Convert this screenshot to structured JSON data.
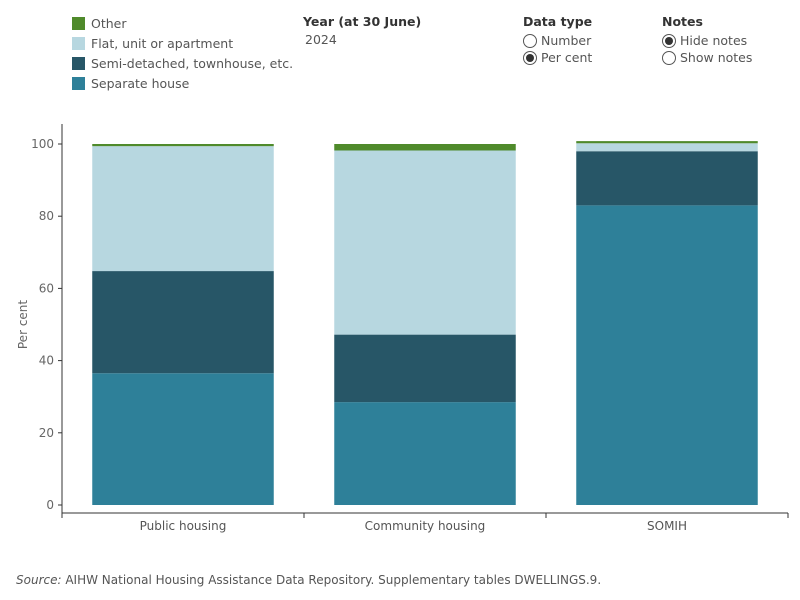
{
  "legend": [
    {
      "label": "Other",
      "color": "#4f8a2b"
    },
    {
      "label": "Flat, unit or apartment",
      "color": "#b7d7e0"
    },
    {
      "label": "Semi-detached, townhouse, etc.",
      "color": "#275667"
    },
    {
      "label": "Separate house",
      "color": "#2e8099"
    }
  ],
  "filters": {
    "year": {
      "title": "Year (at 30 June)",
      "value": "2024"
    },
    "data_type": {
      "title": "Data type",
      "options": [
        {
          "label": "Number",
          "checked": false
        },
        {
          "label": "Per cent",
          "checked": true
        }
      ]
    },
    "notes": {
      "title": "Notes",
      "options": [
        {
          "label": "Hide notes",
          "checked": true
        },
        {
          "label": "Show notes",
          "checked": false
        }
      ]
    }
  },
  "chart_data": {
    "type": "bar",
    "stacked": true,
    "categories": [
      "Public housing",
      "Community housing",
      "SOMIH"
    ],
    "series": [
      {
        "name": "Separate house",
        "color": "#2e8099",
        "values": [
          36.5,
          28.5,
          83
        ]
      },
      {
        "name": "Semi-detached, townhouse, etc.",
        "color": "#275667",
        "values": [
          28.3,
          18.7,
          15
        ]
      },
      {
        "name": "Flat, unit or apartment",
        "color": "#b7d7e0",
        "values": [
          34.6,
          51,
          2.2
        ]
      },
      {
        "name": "Other",
        "color": "#4f8a2b",
        "values": [
          0.6,
          1.8,
          0.6
        ]
      }
    ],
    "ylabel": "Per cent",
    "ylim": [
      0,
      100
    ],
    "yticks": [
      0,
      20,
      40,
      60,
      80,
      100
    ]
  },
  "source": {
    "prefix": "Source:",
    "text": " AIHW National Housing Assistance Data Repository. Supplementary tables DWELLINGS.9."
  }
}
